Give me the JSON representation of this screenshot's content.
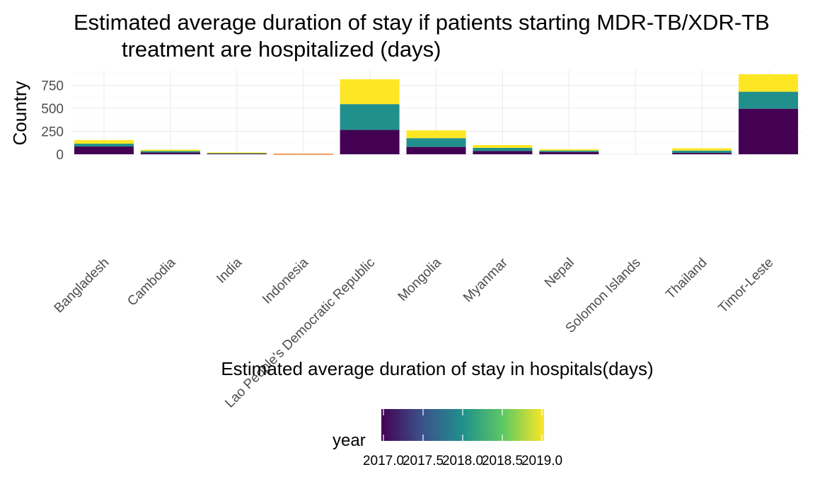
{
  "chart_data": {
    "type": "bar",
    "stacked": true,
    "title_line1": "Estimated average duration of stay if patients starting MDR-TB/XDR-TB",
    "title_line2": "treatment are hospitalized (days)",
    "xlabel": "Estimated average duration of stay in hospitals(days)",
    "ylabel": "Country",
    "categories": [
      "Bangladesh",
      "Cambodia",
      "India",
      "Indonesia",
      "Lao People's Democratic Republic",
      "Mongolia",
      "Myanmar",
      "Nepal",
      "Solomon Islands",
      "Thailand",
      "Timor-Leste"
    ],
    "y_ticks": [
      0,
      250,
      500,
      750
    ],
    "ylim": [
      0,
      880
    ],
    "grid": true,
    "colors": {
      "2017": "#440154",
      "2018": "#21908c",
      "2019": "#fde725",
      "orange": "#e66101"
    },
    "segments": [
      [
        {
          "year": 2017,
          "value": 85
        },
        {
          "year": 2018,
          "value": 30
        },
        {
          "year": 2019,
          "value": 40
        }
      ],
      [
        {
          "year": 2017,
          "value": 20
        },
        {
          "year": 2018,
          "value": 15
        },
        {
          "year": 2019,
          "value": 15
        }
      ],
      [
        {
          "year": 2017,
          "value": 10
        },
        {
          "year": 2018,
          "value": 5
        },
        {
          "year": 2019,
          "value": 5
        }
      ],
      [
        {
          "color_key": "orange",
          "value": 5
        }
      ],
      [
        {
          "year": 2017,
          "value": 265
        },
        {
          "year": 2018,
          "value": 280
        },
        {
          "year": 2019,
          "value": 270
        }
      ],
      [
        {
          "year": 2017,
          "value": 80
        },
        {
          "year": 2018,
          "value": 95
        },
        {
          "year": 2019,
          "value": 85
        }
      ],
      [
        {
          "year": 2017,
          "value": 35
        },
        {
          "year": 2018,
          "value": 35
        },
        {
          "year": 2019,
          "value": 30
        }
      ],
      [
        {
          "year": 2017,
          "value": 25
        },
        {
          "year": 2018,
          "value": 15
        },
        {
          "year": 2019,
          "value": 15
        }
      ],
      [],
      [
        {
          "year": 2017,
          "value": 15
        },
        {
          "year": 2018,
          "value": 25
        },
        {
          "year": 2019,
          "value": 25
        }
      ],
      [
        {
          "year": 2017,
          "value": 495
        },
        {
          "year": 2018,
          "value": 185
        },
        {
          "year": 2019,
          "value": 190
        }
      ]
    ],
    "legend": {
      "title": "year",
      "position": "bottom",
      "tick_labels": [
        "2017.0",
        "2017.5",
        "2018.0",
        "2018.5",
        "2019.0"
      ],
      "gradient_colors": [
        "#440154",
        "#3b528b",
        "#21908c",
        "#5dc963",
        "#fde725"
      ]
    }
  }
}
